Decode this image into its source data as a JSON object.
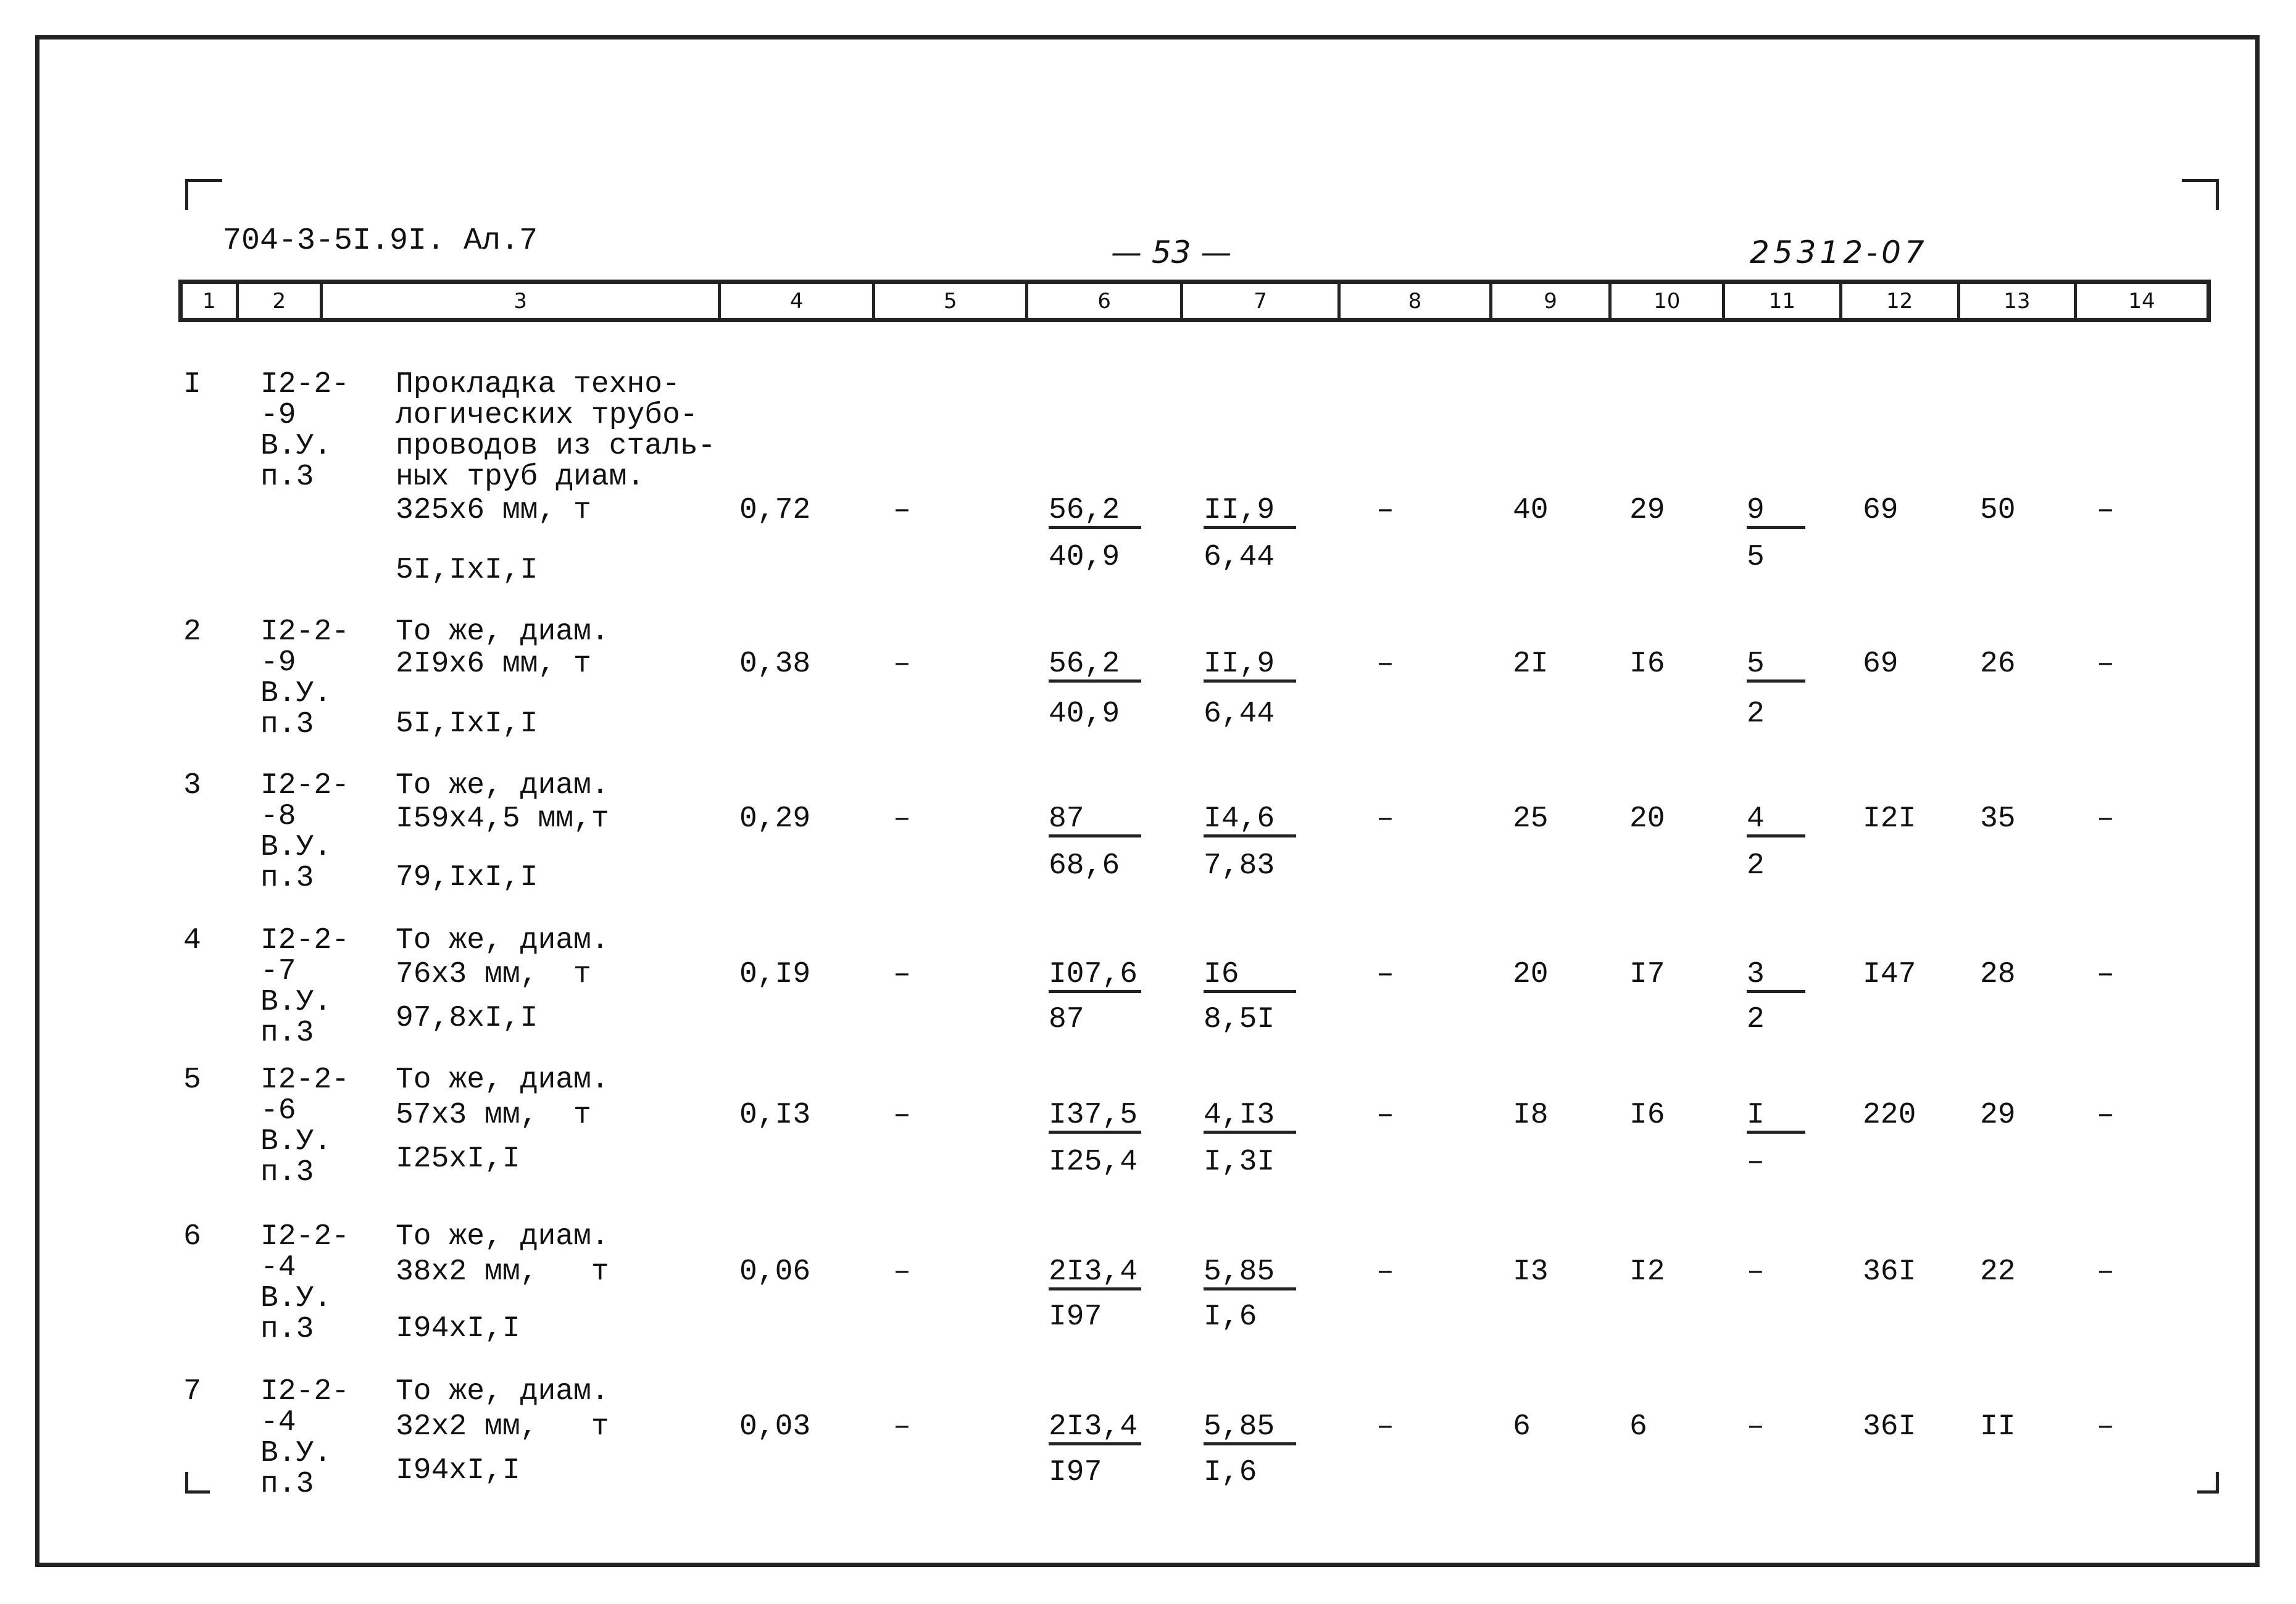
{
  "header": {
    "doc_code": "704-3-5I.9I. Ал.7",
    "page_number": "— 53 —",
    "handwritten_number": "25312-07"
  },
  "column_numbers": [
    "1",
    "2",
    "3",
    "4",
    "5",
    "6",
    "7",
    "8",
    "9",
    "10",
    "11",
    "12",
    "13",
    "14"
  ],
  "rows": [
    {
      "n": "I",
      "code": [
        "I2-2-",
        "-9",
        "В.У.",
        "п.3"
      ],
      "desc": [
        "Прокладка техно-",
        "логических трубо-",
        "проводов из сталь-",
        "ных труб диам.",
        "325x6 мм, т"
      ],
      "sub": "5I,IxI,I",
      "c4": "0,72",
      "c5": "–",
      "c6": {
        "top": "56,2",
        "bottom": "40,9"
      },
      "c7": {
        "top": "II,9",
        "bottom": "6,44"
      },
      "c8": "–",
      "c9": "40",
      "c10": "29",
      "c11": {
        "top": "9",
        "bottom": "5"
      },
      "c12": "69",
      "c13": "50",
      "c14": "–"
    },
    {
      "n": "2",
      "code": [
        "I2-2-",
        "-9",
        "В.У.",
        "п.3"
      ],
      "desc": [
        "То же, диам.",
        "2I9x6 мм, т"
      ],
      "sub": "5I,IxI,I",
      "c4": "0,38",
      "c5": "–",
      "c6": {
        "top": "56,2",
        "bottom": "40,9"
      },
      "c7": {
        "top": "II,9",
        "bottom": "6,44"
      },
      "c8": "–",
      "c9": "2I",
      "c10": "I6",
      "c11": {
        "top": "5",
        "bottom": "2"
      },
      "c12": "69",
      "c13": "26",
      "c14": "–"
    },
    {
      "n": "3",
      "code": [
        "I2-2-",
        "-8",
        "В.У.",
        "п.3"
      ],
      "desc": [
        "То же, диам.",
        "I59x4,5 мм,т"
      ],
      "sub": "79,IxI,I",
      "c4": "0,29",
      "c5": "–",
      "c6": {
        "top": "87",
        "bottom": "68,6"
      },
      "c7": {
        "top": "I4,6",
        "bottom": "7,83"
      },
      "c8": "–",
      "c9": "25",
      "c10": "20",
      "c11": {
        "top": "4",
        "bottom": "2"
      },
      "c12": "I2I",
      "c13": "35",
      "c14": "–"
    },
    {
      "n": "4",
      "code": [
        "I2-2-",
        "-7",
        "В.У.",
        "п.3"
      ],
      "desc": [
        "То же, диам.",
        "76x3 мм,  т"
      ],
      "sub": "97,8xI,I",
      "c4": "0,I9",
      "c5": "–",
      "c6": {
        "top": "I07,6",
        "bottom": "87"
      },
      "c7": {
        "top": "I6",
        "bottom": "8,5I"
      },
      "c8": "–",
      "c9": "20",
      "c10": "I7",
      "c11": {
        "top": "3",
        "bottom": "2"
      },
      "c12": "I47",
      "c13": "28",
      "c14": "–"
    },
    {
      "n": "5",
      "code": [
        "I2-2-",
        "-6",
        "В.У.",
        "п.3"
      ],
      "desc": [
        "То же, диам.",
        "57x3 мм,  т"
      ],
      "sub": "I25xI,I",
      "c4": "0,I3",
      "c5": "–",
      "c6": {
        "top": "I37,5",
        "bottom": "I25,4"
      },
      "c7": {
        "top": "4,I3",
        "bottom": "I,3I"
      },
      "c8": "–",
      "c9": "I8",
      "c10": "I6",
      "c11": {
        "top": "I",
        "bottom": "–"
      },
      "c12": "220",
      "c13": "29",
      "c14": "–"
    },
    {
      "n": "6",
      "code": [
        "I2-2-",
        "-4",
        "В.У.",
        "п.3"
      ],
      "desc": [
        "То же, диам.",
        "38x2 мм,   т"
      ],
      "sub": "I94xI,I",
      "c4": "0,06",
      "c5": "–",
      "c6": {
        "top": "2I3,4",
        "bottom": "I97"
      },
      "c7": {
        "top": "5,85",
        "bottom": "I,6"
      },
      "c8": "–",
      "c9": "I3",
      "c10": "I2",
      "c11": "–",
      "c12": "36I",
      "c13": "22",
      "c14": "–"
    },
    {
      "n": "7",
      "code": [
        "I2-2-",
        "-4",
        "В.У.",
        "п.3"
      ],
      "desc": [
        "То же, диам.",
        "32x2 мм,   т"
      ],
      "sub": "I94xI,I",
      "c4": "0,03",
      "c5": "–",
      "c6": {
        "top": "2I3,4",
        "bottom": "I97"
      },
      "c7": {
        "top": "5,85",
        "bottom": "I,6"
      },
      "c8": "–",
      "c9": "6",
      "c10": "6",
      "c11": "–",
      "c12": "36I",
      "c13": "II",
      "c14": "–"
    }
  ]
}
